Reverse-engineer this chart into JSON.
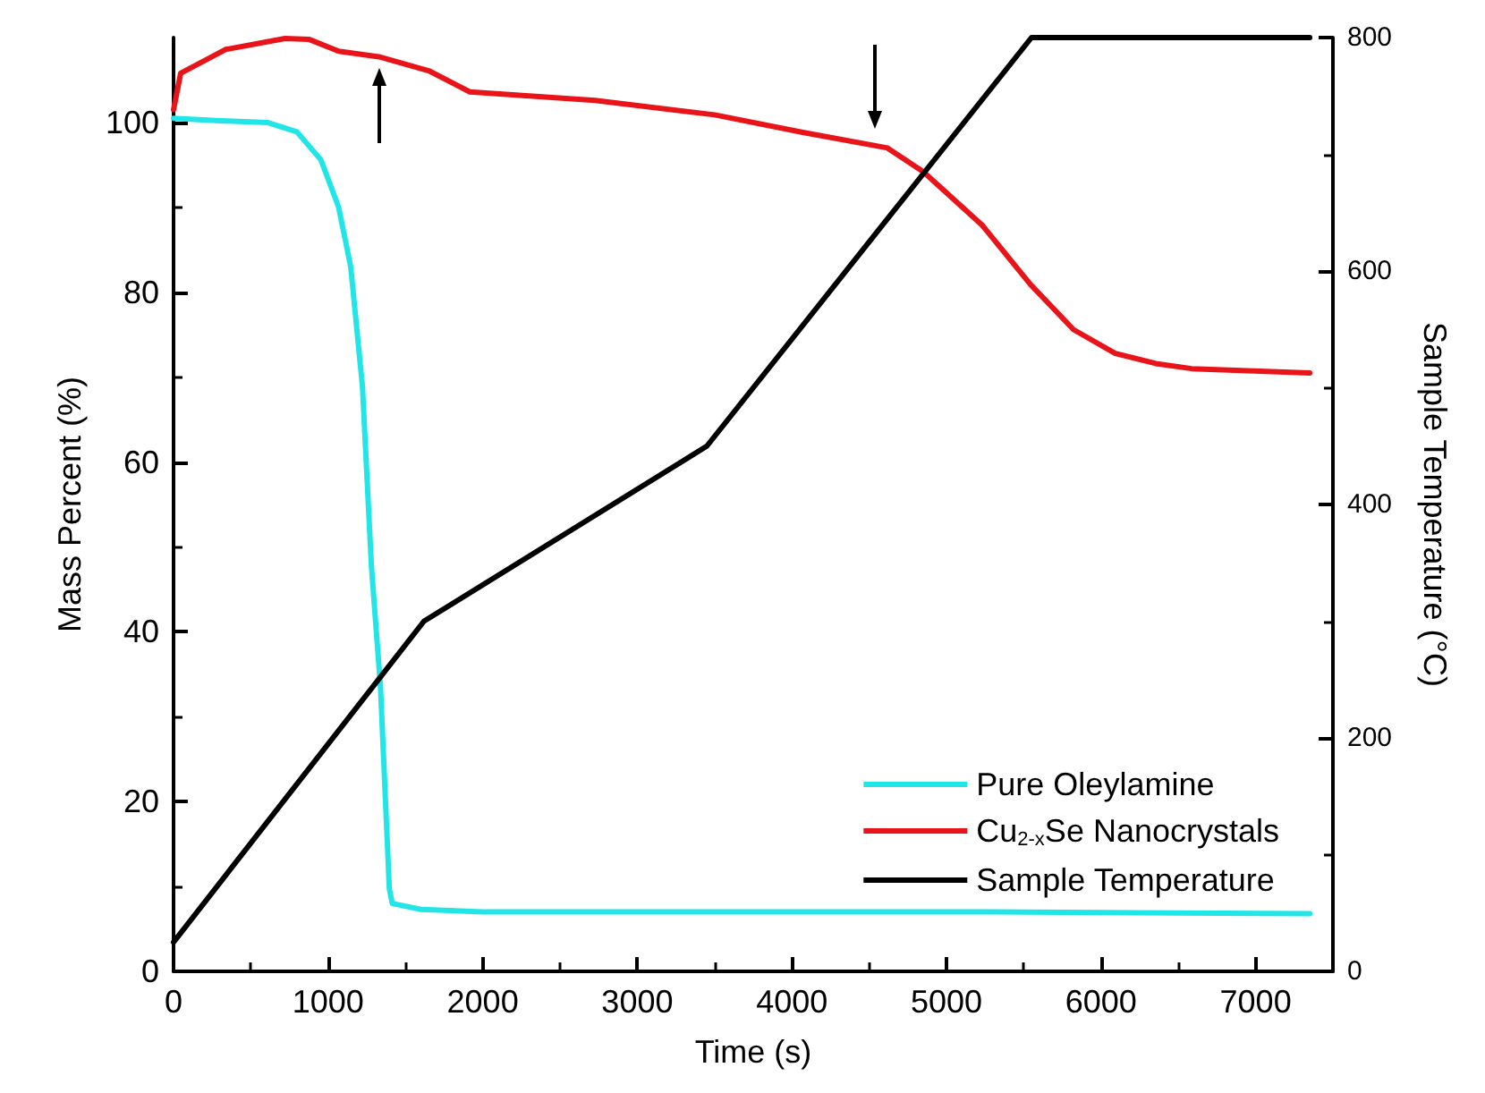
{
  "chart_data": {
    "type": "line",
    "xlabel": "Time (s)",
    "ylabel": "Mass Percent (%)",
    "y2label": "Sample Temperature (°C)",
    "xlim": [
      0,
      7500
    ],
    "xticks": [
      0,
      1000,
      2000,
      3000,
      4000,
      5000,
      6000,
      7000
    ],
    "ylim": [
      0,
      110
    ],
    "yticks": [
      0,
      20,
      40,
      60,
      80,
      100
    ],
    "y2lim": [
      0,
      800
    ],
    "y2ticks": [
      0,
      200,
      400,
      600,
      800
    ],
    "grid": false,
    "legend": "bottom right",
    "marker": "none",
    "line_style": "solid",
    "series": [
      {
        "name": "Pure Oleylamine",
        "color": "#22e5e8",
        "x": [
          0,
          300,
          606,
          798,
          953,
          1068,
          1146,
          1222,
          1280,
          1338,
          1396,
          1415,
          1600,
          2000,
          5300,
          7350
        ],
        "values": [
          100.5,
          100.2,
          100.0,
          98.9,
          95.6,
          90.0,
          83.0,
          68.9,
          47.7,
          33.7,
          9.7,
          8.0,
          7.3,
          7.0,
          7.0,
          6.8
        ]
      },
      {
        "name": "Cu$_{2-x}$Se Nanocrystals",
        "color": "#e8141a",
        "x": [
          0,
          46,
          336,
          721,
          875,
          1068,
          1338,
          1650,
          1917,
          2727,
          3500,
          4078,
          4618,
          4850,
          5231,
          5544,
          5822,
          6092,
          6354,
          6586,
          7350
        ],
        "values": [
          101.5,
          105.8,
          108.6,
          109.9,
          109.8,
          108.4,
          107.7,
          106.1,
          103.6,
          102.6,
          100.9,
          98.8,
          97.0,
          94.2,
          87.9,
          80.9,
          75.6,
          72.8,
          71.6,
          71.0,
          70.5
        ]
      },
      {
        "name": "Sample Temperature",
        "color": "#000000",
        "axis": "y2",
        "x": [
          0,
          1620,
          3450,
          5550,
          7350
        ],
        "values": [
          25,
          300,
          450,
          800,
          800
        ]
      }
    ]
  }
}
